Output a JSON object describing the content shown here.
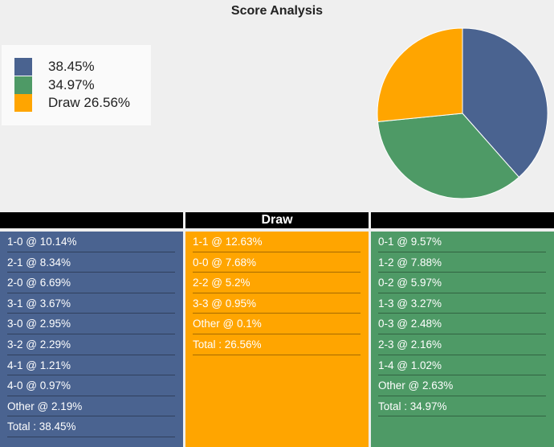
{
  "title": "Score Analysis",
  "colors": {
    "home": "#4a6390",
    "away": "#4e9a66",
    "draw": "#ffa500"
  },
  "chart_data": {
    "type": "pie",
    "slices": [
      {
        "label": "38.45%",
        "value": 38.45,
        "color": "#4a6390"
      },
      {
        "label": "34.97%",
        "value": 34.97,
        "color": "#4e9a66"
      },
      {
        "label": "Draw 26.56%",
        "value": 26.56,
        "color": "#ffa500"
      }
    ],
    "legend_position": "top-left"
  },
  "columns": [
    {
      "header": "",
      "color": "#4a6390",
      "rows": [
        "1-0 @ 10.14%",
        "2-1 @ 8.34%",
        "2-0 @ 6.69%",
        "3-1 @ 3.67%",
        "3-0 @ 2.95%",
        "3-2 @ 2.29%",
        "4-1 @ 1.21%",
        "4-0 @ 0.97%",
        "Other @ 2.19%",
        "Total : 38.45%"
      ]
    },
    {
      "header": "Draw",
      "color": "#ffa500",
      "rows": [
        "1-1 @ 12.63%",
        "0-0 @ 7.68%",
        "2-2 @ 5.2%",
        "3-3 @ 0.95%",
        "Other @ 0.1%",
        "Total : 26.56%"
      ]
    },
    {
      "header": "",
      "color": "#4e9a66",
      "rows": [
        "0-1 @ 9.57%",
        "1-2 @ 7.88%",
        "0-2 @ 5.97%",
        "1-3 @ 3.27%",
        "0-3 @ 2.48%",
        "2-3 @ 2.16%",
        "1-4 @ 1.02%",
        "Other @ 2.63%",
        "Total : 34.97%"
      ]
    }
  ]
}
